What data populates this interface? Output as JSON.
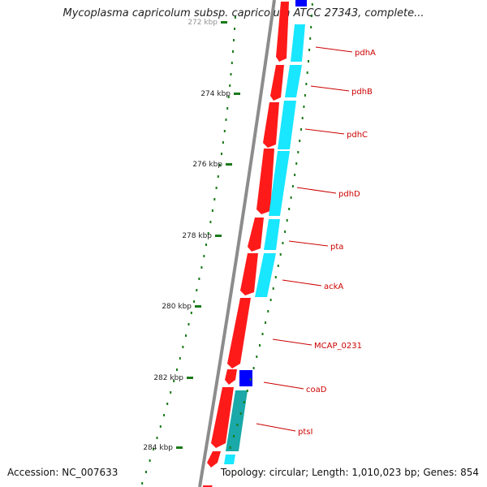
{
  "title": "Mycoplasma capricolum subsp. capricolum ATCC 27343, complete...",
  "footer": {
    "accession": "Accession: NC_007633",
    "topology": "Topology: circular",
    "length": "Length: 1,010,023 bp",
    "genes": "Genes: 854"
  },
  "colors": {
    "backbone": "#8c8c8c",
    "forward_gene": "#ff1a1a",
    "cds_feature": "#19e6ff",
    "alt_feature": "#1aa8a8",
    "rna_feature": "#0000ff",
    "tick": "#1a7a1a",
    "label_line": "#cc0000",
    "label_text": "#cc0000"
  },
  "ticks": [
    {
      "label": "272 kbp"
    },
    {
      "label": "274 kbp"
    },
    {
      "label": "276 kbp"
    },
    {
      "label": "278 kbp"
    },
    {
      "label": "280 kbp"
    },
    {
      "label": "282 kbp"
    },
    {
      "label": "284 kbp"
    }
  ],
  "genes": [
    {
      "label": "pdhA"
    },
    {
      "label": "pdhB"
    },
    {
      "label": "pdhC"
    },
    {
      "label": "pdhD"
    },
    {
      "label": "pta"
    },
    {
      "label": "ackA"
    },
    {
      "label": "MCAP_0231"
    },
    {
      "label": "coaD"
    },
    {
      "label": "ptsI"
    }
  ]
}
